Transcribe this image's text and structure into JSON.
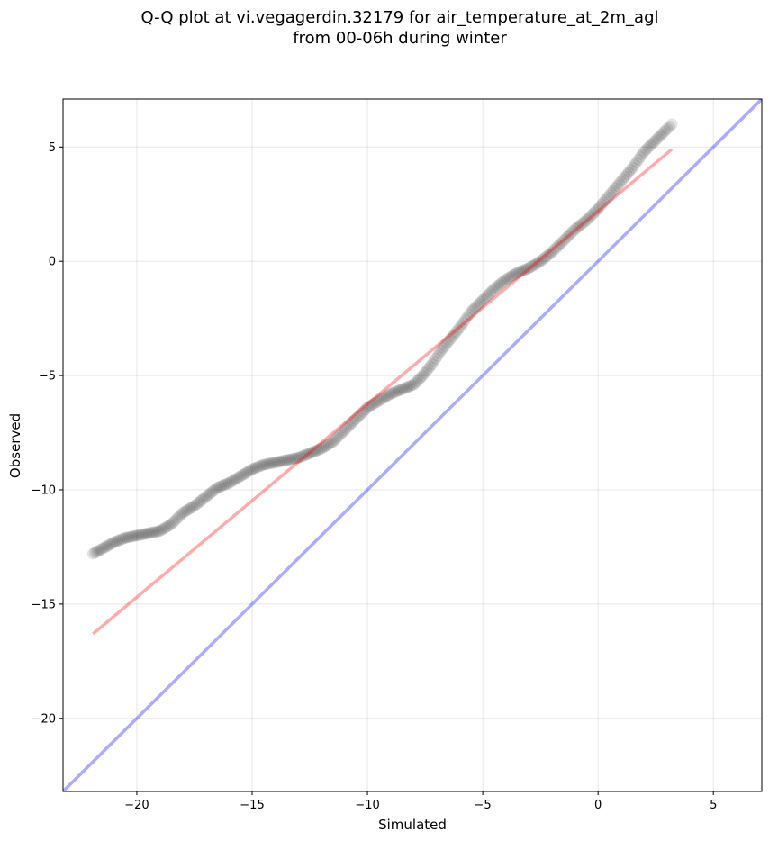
{
  "chart_data": {
    "type": "scatter",
    "title_line1": "Q-Q plot at vi.vegagerdin.32179 for air_temperature_at_2m_agl",
    "title_line2": "from 00-06h during winter",
    "xlabel": "Simulated",
    "ylabel": "Observed",
    "xlim": [
      -23.2,
      7.1
    ],
    "ylim": [
      -23.2,
      7.1
    ],
    "xticks": [
      -20,
      -15,
      -10,
      -5,
      0,
      5
    ],
    "yticks": [
      5,
      0,
      -5,
      -10,
      -15,
      -20
    ],
    "grid": true,
    "colors": {
      "points": "#000000",
      "fit_line": "#ff0000",
      "identity_line": "#0000ff"
    },
    "identity_line": {
      "x": [
        -23.2,
        7.1
      ],
      "y": [
        -23.2,
        7.1
      ]
    },
    "fit_line": {
      "x": [
        -21.9,
        3.2
      ],
      "y": [
        -16.3,
        4.9
      ]
    },
    "quantile_curve": {
      "x": [
        -21.9,
        -21.0,
        -20.5,
        -20.0,
        -19.5,
        -19.0,
        -18.5,
        -18.0,
        -17.5,
        -17.0,
        -16.5,
        -16.0,
        -15.5,
        -15.0,
        -14.5,
        -14.0,
        -13.5,
        -13.0,
        -12.5,
        -12.0,
        -11.5,
        -11.0,
        -10.5,
        -10.0,
        -9.5,
        -9.0,
        -8.5,
        -8.0,
        -7.6,
        -7.2,
        -6.8,
        -6.4,
        -6.0,
        -5.5,
        -5.0,
        -4.5,
        -4.0,
        -3.5,
        -3.0,
        -2.5,
        -2.0,
        -1.5,
        -1.0,
        -0.5,
        0.0,
        0.5,
        1.0,
        1.5,
        2.0,
        2.5,
        3.0,
        3.2
      ],
      "y": [
        -12.8,
        -12.3,
        -12.1,
        -12.0,
        -11.9,
        -11.8,
        -11.5,
        -11.0,
        -10.7,
        -10.3,
        -9.9,
        -9.7,
        -9.4,
        -9.1,
        -8.9,
        -8.8,
        -8.7,
        -8.6,
        -8.4,
        -8.2,
        -7.9,
        -7.4,
        -6.9,
        -6.4,
        -6.1,
        -5.8,
        -5.6,
        -5.4,
        -5.0,
        -4.5,
        -3.9,
        -3.4,
        -2.9,
        -2.2,
        -1.7,
        -1.2,
        -0.8,
        -0.5,
        -0.3,
        0.0,
        0.4,
        0.9,
        1.4,
        1.8,
        2.3,
        2.9,
        3.5,
        4.1,
        4.8,
        5.3,
        5.8,
        6.0
      ]
    }
  }
}
